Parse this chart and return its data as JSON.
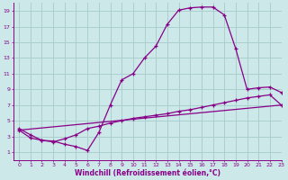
{
  "xlabel": "Windchill (Refroidissement éolien,°C)",
  "bg_color": "#cce8e8",
  "grid_color": "#aacece",
  "line_color": "#880088",
  "curve1_x": [
    0,
    1,
    2,
    3,
    4,
    5,
    6,
    7,
    8,
    9,
    10,
    11,
    12,
    13,
    14,
    15,
    16,
    17,
    18,
    19,
    20,
    21,
    22,
    23
  ],
  "curve1_y": [
    4.0,
    3.2,
    2.5,
    2.4,
    2.0,
    1.7,
    1.2,
    3.5,
    7.0,
    10.2,
    11.0,
    13.0,
    14.5,
    17.3,
    19.1,
    19.4,
    19.5,
    19.5,
    18.5,
    14.2,
    9.0,
    9.2,
    9.3,
    8.6
  ],
  "curve2_x": [
    0,
    1,
    2,
    3,
    4,
    5,
    6,
    7,
    8,
    9,
    10,
    11,
    12,
    13,
    14,
    15,
    16,
    17,
    18,
    19,
    20,
    21,
    22,
    23
  ],
  "curve2_y": [
    3.8,
    2.8,
    2.5,
    2.3,
    2.7,
    3.2,
    4.0,
    4.3,
    4.7,
    5.0,
    5.3,
    5.5,
    5.7,
    5.9,
    6.2,
    6.4,
    6.7,
    7.0,
    7.3,
    7.6,
    7.9,
    8.1,
    8.3,
    7.0
  ],
  "curve3_x": [
    0,
    23
  ],
  "curve3_y": [
    3.8,
    7.0
  ],
  "xlim": [
    -0.5,
    23
  ],
  "ylim": [
    0,
    20
  ],
  "xticks": [
    0,
    1,
    2,
    3,
    4,
    5,
    6,
    7,
    8,
    9,
    10,
    11,
    12,
    13,
    14,
    15,
    16,
    17,
    18,
    19,
    20,
    21,
    22,
    23
  ],
  "yticks": [
    1,
    3,
    5,
    7,
    9,
    11,
    13,
    15,
    17,
    19
  ]
}
